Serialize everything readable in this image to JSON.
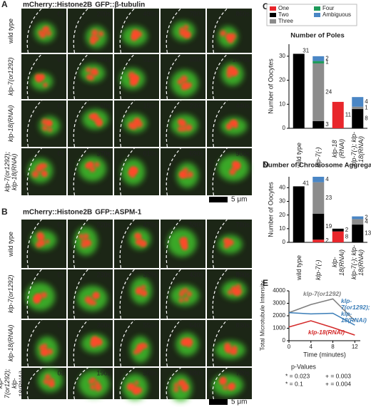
{
  "panel_a": {
    "letter": "A",
    "title_red": "mCherry::Histone2B",
    "title_green": "GFP::β-tubulin",
    "scale_bar": "5 μm",
    "rows": [
      {
        "label": "wild type",
        "times": [
          "0s",
          "200s",
          "490s",
          "780s",
          "860s"
        ]
      },
      {
        "label": "klp-7(or1292)",
        "times": [
          "0s",
          "260s",
          "510s",
          "680s",
          "1070s"
        ]
      },
      {
        "label": "klp-18(RNAi)",
        "times": [
          "0s",
          "60s",
          "150s",
          "230s",
          "440s"
        ]
      },
      {
        "label": "klp-7(or1292); klp-18(RNAi)",
        "times": [
          "0s",
          "370s",
          "610s",
          "690s",
          "900s"
        ]
      }
    ]
  },
  "panel_b": {
    "letter": "B",
    "title_red": "mCherry::Histone2B",
    "title_green": "GFP::ASPM-1",
    "scale_bar": "5 μm",
    "rows": [
      {
        "label": "wild type",
        "times": [
          "0s",
          "220s",
          "470s",
          "590s",
          "780s"
        ]
      },
      {
        "label": "klp-7(or1292)",
        "times": [
          "0s",
          "230s",
          "330s",
          "430s",
          "800s"
        ]
      },
      {
        "label": "klp-18(RNAi)",
        "times": [
          "0s",
          "300s",
          "550s",
          "640s",
          "830s"
        ]
      },
      {
        "label": "klp-7(or1292); klp-18(RNAi)",
        "times": [
          "0s",
          "190s",
          "560s",
          "680s",
          "780s"
        ]
      }
    ]
  },
  "chart_data": [
    {
      "type": "bar",
      "stacked": true,
      "label": "C",
      "title": "Number of Poles",
      "ylabel": "Number of Oocytes",
      "categories": [
        "wild type",
        "klp-7(-)",
        "klp-18 (RNAi)",
        "klp-7(-); klp-18(RNAi)"
      ],
      "series": [
        {
          "name": "One",
          "color": "#e8262b",
          "values": [
            0,
            0,
            11,
            0
          ]
        },
        {
          "name": "Two",
          "color": "#000000",
          "values": [
            31,
            3,
            0,
            8
          ]
        },
        {
          "name": "Three",
          "color": "#8c8c8c",
          "values": [
            0,
            24,
            0,
            1
          ]
        },
        {
          "name": "Four",
          "color": "#1e9a5a",
          "values": [
            0,
            1,
            0,
            0
          ]
        },
        {
          "name": "Ambiguous",
          "color": "#4a86c5",
          "values": [
            0,
            2,
            0,
            4
          ]
        }
      ],
      "ylim": [
        0,
        35
      ],
      "yticks": [
        0,
        10,
        20,
        30
      ],
      "legend": "top"
    },
    {
      "type": "bar",
      "stacked": true,
      "label": "D",
      "title": "Number of Chromosome Aggregates",
      "ylabel": "Number of Oocytes",
      "categories": [
        "wild type",
        "klp-7(-)",
        "klp-18(RNAi)",
        "klp-7(-); klp-18(RNAi)"
      ],
      "series": [
        {
          "color": "#e8262b",
          "values": [
            0,
            2,
            8,
            0
          ]
        },
        {
          "color": "#000000",
          "values": [
            41,
            19,
            2,
            13
          ]
        },
        {
          "color": "#8c8c8c",
          "values": [
            0,
            23,
            0,
            4
          ]
        },
        {
          "color": "#1e9a5a",
          "values": [
            0,
            0,
            0,
            0
          ]
        },
        {
          "color": "#4a86c5",
          "values": [
            0,
            4,
            0,
            2
          ]
        }
      ],
      "ylim": [
        0,
        48
      ],
      "yticks": [
        0,
        10,
        20,
        30,
        40
      ]
    },
    {
      "type": "line",
      "label": "E",
      "xlabel": "Time (minutes)",
      "ylabel": "Total Microtubule Intensity",
      "x": [
        0,
        4,
        8,
        12
      ],
      "xlim": [
        0,
        13
      ],
      "xticks": [
        0,
        4,
        8,
        12
      ],
      "ylim": [
        0,
        4000
      ],
      "yticks": [
        0,
        1000,
        2000,
        3000,
        4000
      ],
      "series": [
        {
          "name": "klp-7(or1292)",
          "color": "#7f7f7f",
          "values": [
            2250,
            2900,
            3350,
            1600
          ]
        },
        {
          "name": "klp-7(or1292); klp-18(RNAi)",
          "color": "#3a7db8",
          "values": [
            2250,
            2150,
            2200,
            1250
          ]
        },
        {
          "name": "klp-18(RNAi)",
          "color": "#d42a2a",
          "values": [
            1100,
            1600,
            1050,
            450
          ]
        }
      ],
      "p_values": {
        "title": "p-Values",
        "items": [
          {
            "text": "* = 0.023",
            "color": "#444444"
          },
          {
            "text": "+ = 0.003",
            "color": "#1e9a5a"
          },
          {
            "text": "* = 0.1",
            "color": "#555555"
          },
          {
            "text": "+ = 0.004",
            "color": "#1e9a5a"
          }
        ]
      }
    }
  ]
}
